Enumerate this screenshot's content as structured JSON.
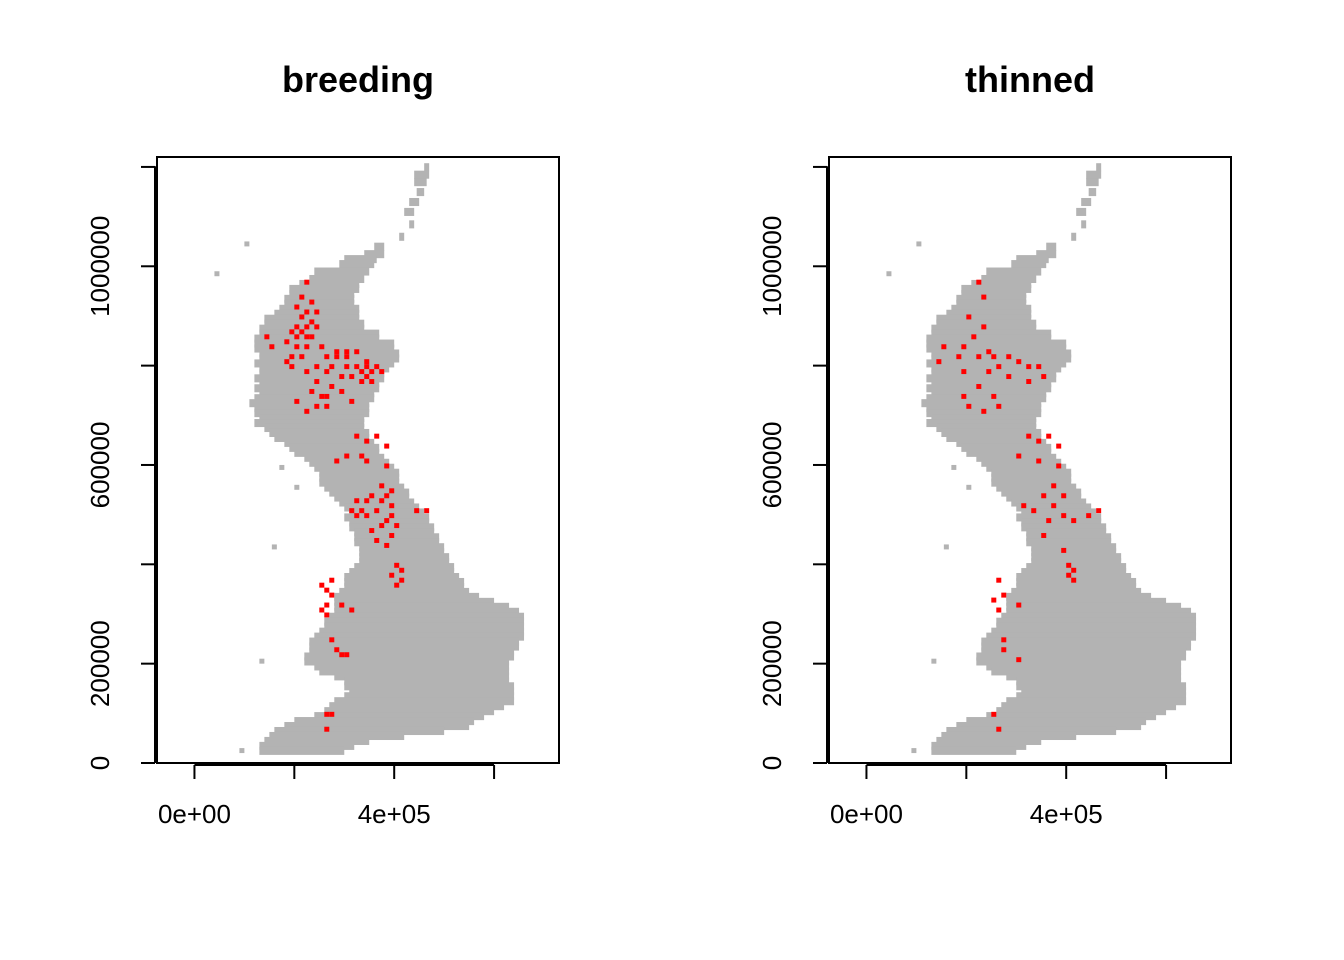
{
  "chart_data": [
    {
      "type": "raster-map",
      "title": "breeding",
      "x_axis": {
        "ticks": [
          0,
          200000,
          400000,
          600000
        ],
        "tick_labels": [
          "0e+00",
          "",
          "4e+05",
          ""
        ],
        "range": [
          -75000,
          730000
        ]
      },
      "y_axis": {
        "ticks": [
          0,
          200000,
          400000,
          600000,
          800000,
          1000000
        ],
        "tick_labels": [
          "0",
          "200000",
          "",
          "600000",
          "",
          "1000000"
        ],
        "range": [
          0,
          1220000
        ]
      },
      "background_color": "#b3b3b3",
      "point_color": "#ff0000",
      "points": [
        [
          225000,
          968000
        ],
        [
          215000,
          938000
        ],
        [
          235000,
          928000
        ],
        [
          205000,
          918000
        ],
        [
          225000,
          908000
        ],
        [
          245000,
          908000
        ],
        [
          215000,
          898000
        ],
        [
          235000,
          888000
        ],
        [
          205000,
          878000
        ],
        [
          225000,
          878000
        ],
        [
          245000,
          878000
        ],
        [
          195000,
          868000
        ],
        [
          215000,
          868000
        ],
        [
          235000,
          858000
        ],
        [
          205000,
          858000
        ],
        [
          225000,
          858000
        ],
        [
          145000,
          858000
        ],
        [
          185000,
          848000
        ],
        [
          225000,
          838000
        ],
        [
          155000,
          838000
        ],
        [
          205000,
          838000
        ],
        [
          255000,
          838000
        ],
        [
          285000,
          828000
        ],
        [
          305000,
          828000
        ],
        [
          325000,
          828000
        ],
        [
          265000,
          818000
        ],
        [
          285000,
          818000
        ],
        [
          305000,
          818000
        ],
        [
          195000,
          818000
        ],
        [
          215000,
          818000
        ],
        [
          185000,
          808000
        ],
        [
          345000,
          808000
        ],
        [
          275000,
          798000
        ],
        [
          305000,
          798000
        ],
        [
          325000,
          798000
        ],
        [
          345000,
          798000
        ],
        [
          365000,
          798000
        ],
        [
          195000,
          798000
        ],
        [
          245000,
          798000
        ],
        [
          335000,
          788000
        ],
        [
          355000,
          788000
        ],
        [
          375000,
          788000
        ],
        [
          225000,
          788000
        ],
        [
          265000,
          788000
        ],
        [
          315000,
          778000
        ],
        [
          345000,
          778000
        ],
        [
          295000,
          778000
        ],
        [
          245000,
          768000
        ],
        [
          335000,
          768000
        ],
        [
          355000,
          768000
        ],
        [
          275000,
          758000
        ],
        [
          295000,
          748000
        ],
        [
          235000,
          748000
        ],
        [
          265000,
          738000
        ],
        [
          205000,
          728000
        ],
        [
          315000,
          728000
        ],
        [
          245000,
          718000
        ],
        [
          255000,
          738000
        ],
        [
          225000,
          708000
        ],
        [
          265000,
          718000
        ],
        [
          325000,
          658000
        ],
        [
          365000,
          658000
        ],
        [
          345000,
          648000
        ],
        [
          385000,
          638000
        ],
        [
          305000,
          618000
        ],
        [
          335000,
          618000
        ],
        [
          285000,
          608000
        ],
        [
          345000,
          608000
        ],
        [
          385000,
          598000
        ],
        [
          375000,
          558000
        ],
        [
          395000,
          548000
        ],
        [
          355000,
          538000
        ],
        [
          385000,
          538000
        ],
        [
          325000,
          528000
        ],
        [
          345000,
          528000
        ],
        [
          375000,
          528000
        ],
        [
          395000,
          518000
        ],
        [
          465000,
          508000
        ],
        [
          315000,
          508000
        ],
        [
          335000,
          508000
        ],
        [
          365000,
          508000
        ],
        [
          445000,
          508000
        ],
        [
          395000,
          498000
        ],
        [
          325000,
          498000
        ],
        [
          345000,
          498000
        ],
        [
          385000,
          488000
        ],
        [
          405000,
          478000
        ],
        [
          375000,
          478000
        ],
        [
          355000,
          468000
        ],
        [
          395000,
          458000
        ],
        [
          365000,
          448000
        ],
        [
          385000,
          438000
        ],
        [
          405000,
          398000
        ],
        [
          415000,
          388000
        ],
        [
          395000,
          378000
        ],
        [
          415000,
          368000
        ],
        [
          405000,
          358000
        ],
        [
          275000,
          368000
        ],
        [
          255000,
          358000
        ],
        [
          265000,
          348000
        ],
        [
          275000,
          338000
        ],
        [
          265000,
          318000
        ],
        [
          295000,
          318000
        ],
        [
          255000,
          308000
        ],
        [
          315000,
          308000
        ],
        [
          265000,
          298000
        ],
        [
          275000,
          248000
        ],
        [
          285000,
          228000
        ],
        [
          295000,
          218000
        ],
        [
          305000,
          218000
        ],
        [
          265000,
          98000
        ],
        [
          275000,
          98000
        ],
        [
          265000,
          68000
        ]
      ]
    },
    {
      "type": "raster-map",
      "title": "thinned",
      "x_axis": {
        "ticks": [
          0,
          200000,
          400000,
          600000
        ],
        "tick_labels": [
          "0e+00",
          "",
          "4e+05",
          ""
        ],
        "range": [
          -75000,
          730000
        ]
      },
      "y_axis": {
        "ticks": [
          0,
          200000,
          400000,
          600000,
          800000,
          1000000
        ],
        "tick_labels": [
          "0",
          "200000",
          "",
          "600000",
          "",
          "1000000"
        ],
        "range": [
          0,
          1220000
        ]
      },
      "background_color": "#b3b3b3",
      "point_color": "#ff0000",
      "points": [
        [
          225000,
          968000
        ],
        [
          235000,
          938000
        ],
        [
          205000,
          898000
        ],
        [
          235000,
          878000
        ],
        [
          215000,
          858000
        ],
        [
          155000,
          838000
        ],
        [
          195000,
          838000
        ],
        [
          245000,
          828000
        ],
        [
          185000,
          818000
        ],
        [
          225000,
          818000
        ],
        [
          255000,
          818000
        ],
        [
          285000,
          818000
        ],
        [
          305000,
          808000
        ],
        [
          145000,
          808000
        ],
        [
          265000,
          798000
        ],
        [
          325000,
          798000
        ],
        [
          345000,
          798000
        ],
        [
          195000,
          788000
        ],
        [
          245000,
          788000
        ],
        [
          285000,
          778000
        ],
        [
          355000,
          778000
        ],
        [
          325000,
          768000
        ],
        [
          225000,
          758000
        ],
        [
          195000,
          738000
        ],
        [
          255000,
          738000
        ],
        [
          205000,
          718000
        ],
        [
          235000,
          708000
        ],
        [
          265000,
          718000
        ],
        [
          325000,
          658000
        ],
        [
          365000,
          658000
        ],
        [
          345000,
          648000
        ],
        [
          385000,
          638000
        ],
        [
          305000,
          618000
        ],
        [
          345000,
          608000
        ],
        [
          385000,
          598000
        ],
        [
          375000,
          558000
        ],
        [
          355000,
          538000
        ],
        [
          395000,
          538000
        ],
        [
          315000,
          518000
        ],
        [
          375000,
          518000
        ],
        [
          465000,
          508000
        ],
        [
          335000,
          508000
        ],
        [
          445000,
          498000
        ],
        [
          395000,
          498000
        ],
        [
          365000,
          488000
        ],
        [
          415000,
          488000
        ],
        [
          355000,
          458000
        ],
        [
          395000,
          428000
        ],
        [
          405000,
          398000
        ],
        [
          415000,
          388000
        ],
        [
          405000,
          378000
        ],
        [
          415000,
          368000
        ],
        [
          265000,
          368000
        ],
        [
          275000,
          338000
        ],
        [
          255000,
          328000
        ],
        [
          305000,
          318000
        ],
        [
          265000,
          308000
        ],
        [
          275000,
          248000
        ],
        [
          275000,
          228000
        ],
        [
          305000,
          208000
        ],
        [
          255000,
          98000
        ],
        [
          265000,
          68000
        ]
      ]
    }
  ]
}
